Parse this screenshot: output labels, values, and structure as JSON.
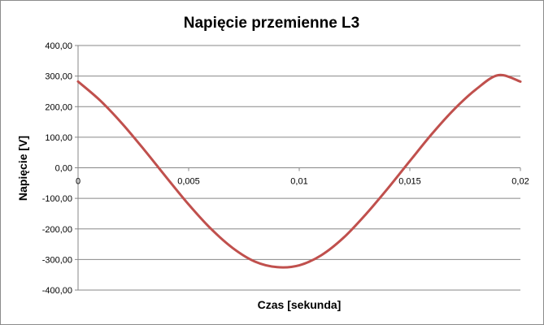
{
  "chart_data": {
    "type": "line",
    "title": "Napięcie przemienne L3",
    "xlabel": "Czas [sekunda]",
    "ylabel": "Napięcie [V]",
    "xlim": [
      0,
      0.02
    ],
    "ylim": [
      -400,
      400
    ],
    "x_ticks": [
      "0",
      "0,005",
      "0,01",
      "0,015",
      "0,02"
    ],
    "y_ticks": [
      "400,00",
      "300,00",
      "200,00",
      "100,00",
      "0,00",
      "-100,00",
      "-200,00",
      "-300,00",
      "-400,00"
    ],
    "grid": "horizontal",
    "legend": "none",
    "series": [
      {
        "color": "#c0504d",
        "x": [
          0,
          0.001,
          0.002,
          0.003,
          0.004,
          0.005,
          0.006,
          0.007,
          0.008,
          0.009,
          0.01,
          0.011,
          0.012,
          0.013,
          0.014,
          0.015,
          0.016,
          0.017,
          0.018,
          0.019,
          0.02
        ],
        "y": [
          282,
          220,
          144,
          58,
          -32,
          -120,
          -199,
          -263,
          -307,
          -325,
          -319,
          -286,
          -229,
          -153,
          -68,
          22,
          111,
          191,
          257,
          303,
          282
        ]
      }
    ]
  }
}
